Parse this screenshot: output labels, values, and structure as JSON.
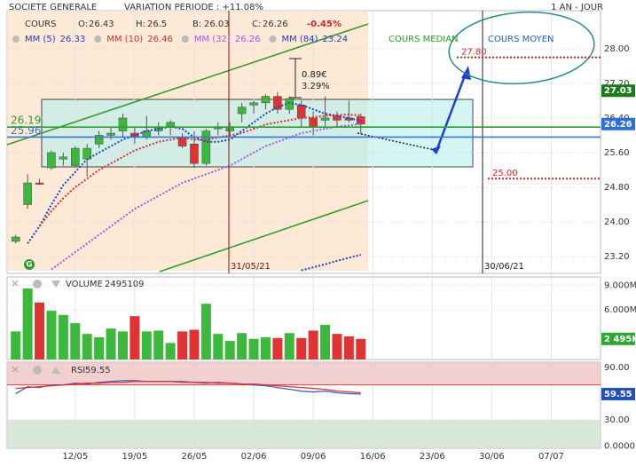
{
  "header": {
    "title": "SOCIETE GENERALE",
    "variation": "VARIATION PERIODE : +11.08%",
    "period": "1 AN - JOUR",
    "cours": "COURS",
    "o": "O:",
    "h": "H:",
    "b": "B:",
    "c": "C:",
    "change": "-0.45%"
  },
  "chart_data": [
    {
      "type": "candlestick",
      "categories": [
        null,
        null,
        null,
        null,
        null,
        "12/05",
        null,
        null,
        null,
        null,
        "19/05",
        null,
        null,
        null,
        null,
        "26/05",
        null,
        null,
        null,
        null,
        "02/06",
        null,
        null,
        null,
        null,
        "09/06",
        null,
        null,
        null,
        null,
        "16/06",
        null,
        null,
        null,
        null,
        "23/06",
        null,
        null,
        null,
        null,
        "30/06",
        null,
        null,
        null,
        null,
        "07/07",
        null,
        null
      ],
      "open": [
        23.55,
        24.4,
        24.9,
        25.25,
        25.45,
        25.3,
        25.45,
        25.8,
        26.0,
        26.1,
        26.05,
        25.95,
        26.1,
        26.2,
        25.95,
        25.8,
        25.35,
        26.15,
        26.1,
        26.5,
        26.7,
        26.75,
        26.9,
        26.6,
        26.7,
        26.4,
        26.35,
        26.45,
        26.4,
        26.43,
        null,
        null,
        null,
        null,
        null,
        null,
        null,
        null,
        null,
        null,
        null,
        null,
        null,
        null,
        null,
        null,
        null,
        null
      ],
      "high": [
        23.7,
        25.1,
        25.0,
        25.65,
        25.6,
        25.75,
        25.8,
        26.1,
        26.2,
        26.5,
        26.2,
        26.45,
        26.3,
        26.35,
        26.05,
        26.1,
        26.15,
        26.3,
        26.3,
        26.75,
        26.8,
        26.95,
        27.0,
        26.9,
        26.8,
        26.55,
        26.9,
        26.55,
        26.8,
        26.5,
        null,
        null,
        null,
        null,
        null,
        null,
        null,
        null,
        null,
        null,
        null,
        null,
        null,
        null,
        null,
        null,
        null,
        null
      ],
      "low": [
        23.5,
        24.3,
        24.85,
        25.2,
        25.3,
        25.25,
        25.05,
        25.7,
        25.9,
        25.95,
        25.8,
        25.9,
        26.0,
        26.0,
        25.7,
        25.25,
        25.3,
        26.0,
        26.0,
        26.3,
        26.5,
        26.6,
        26.5,
        26.5,
        26.2,
        26.0,
        26.2,
        26.2,
        26.3,
        26.03,
        null,
        null,
        null,
        null,
        null,
        null,
        null,
        null,
        null,
        null,
        null,
        null,
        null,
        null,
        null,
        null,
        null,
        null
      ],
      "close": [
        23.65,
        24.9,
        24.88,
        25.6,
        25.5,
        25.7,
        25.7,
        26.0,
        26.05,
        26.4,
        25.95,
        26.1,
        26.2,
        26.3,
        25.75,
        25.35,
        26.1,
        26.2,
        26.2,
        26.65,
        26.75,
        26.9,
        26.6,
        26.85,
        26.4,
        26.2,
        26.4,
        26.35,
        26.35,
        26.26,
        null,
        null,
        null,
        null,
        null,
        null,
        null,
        null,
        null,
        null,
        null,
        null,
        null,
        null,
        null,
        null,
        null,
        null
      ],
      "up_color": "#3cb83c",
      "down_color": "#e03434",
      "ylim": [
        22.81,
        28.88
      ],
      "yticks": [
        {
          "value": 23.2,
          "label": "23.20"
        },
        {
          "value": 24,
          "label": "24.00"
        },
        {
          "value": 24.8,
          "label": "24.80"
        },
        {
          "value": 25.6,
          "label": "25.60"
        },
        {
          "value": 26.4,
          "label": "26.40"
        },
        {
          "value": 27.2,
          "label": "27.20"
        },
        {
          "value": 28,
          "label": "28.00"
        }
      ],
      "grid": true,
      "series": [
        {
          "name": "MM (5)",
          "color": "#1f3fc8",
          "values": [
            null,
            23.5,
            23.9,
            24.4,
            24.85,
            25.15,
            25.45,
            25.6,
            25.75,
            25.9,
            26.0,
            26.1,
            26.15,
            26.2,
            26.15,
            25.95,
            25.85,
            25.85,
            25.9,
            26.1,
            26.3,
            26.5,
            26.65,
            26.75,
            26.7,
            26.6,
            26.5,
            26.45,
            26.4,
            26.33,
            null,
            null,
            null,
            null,
            null,
            null,
            null,
            null,
            null,
            null,
            null,
            null,
            null,
            null,
            null,
            null,
            null,
            null
          ]
        },
        {
          "name": "MM (10)",
          "color": "#d83030",
          "values": [
            null,
            null,
            23.9,
            24.25,
            24.55,
            24.8,
            25.0,
            25.2,
            25.35,
            25.5,
            25.65,
            25.75,
            25.85,
            25.9,
            25.95,
            25.9,
            25.9,
            25.95,
            26.0,
            26.05,
            26.15,
            26.25,
            26.3,
            26.35,
            26.4,
            26.42,
            26.45,
            26.47,
            26.48,
            26.46,
            null,
            null,
            null,
            null,
            null,
            null,
            null,
            null,
            null,
            null,
            null,
            null,
            null,
            null,
            null,
            null,
            null,
            null
          ]
        },
        {
          "name": "MM (32)",
          "color": "#a855e8",
          "values": [
            null,
            null,
            null,
            22.9,
            23.1,
            23.3,
            23.5,
            23.7,
            23.9,
            24.1,
            24.3,
            24.45,
            24.6,
            24.75,
            24.9,
            25.0,
            25.1,
            25.2,
            25.3,
            25.45,
            25.6,
            25.75,
            25.85,
            25.95,
            26.05,
            26.1,
            26.15,
            26.2,
            26.23,
            26.26,
            null,
            null,
            null,
            null,
            null,
            null,
            null,
            null,
            null,
            null,
            null,
            null,
            null,
            null,
            null,
            null,
            null,
            null
          ]
        },
        {
          "name": "MM (84)",
          "color": "#1f3fc8",
          "values": [
            null,
            null,
            null,
            null,
            null,
            null,
            null,
            null,
            null,
            null,
            null,
            null,
            null,
            null,
            null,
            null,
            null,
            null,
            null,
            null,
            null,
            null,
            null,
            null,
            22.88,
            22.95,
            23.02,
            23.1,
            23.17,
            23.24,
            null,
            null,
            null,
            null,
            null,
            null,
            null,
            null,
            null,
            null,
            null,
            null,
            null,
            null,
            null,
            null,
            null,
            null
          ]
        }
      ],
      "levels": [
        {
          "value": 26.19,
          "color": "#2e9e2e"
        },
        {
          "value": 25.96,
          "color": "#3a78d8"
        }
      ],
      "targets": [
        {
          "value": 27.8,
          "label": "27.80",
          "color": "#e02020"
        },
        {
          "value": 25,
          "label": "25.00",
          "color": "#e02020"
        }
      ],
      "badges": [
        {
          "value": 27.03,
          "color": "#1c7a1c"
        }
      ],
      "texts": {
        "median": "COURS MEDIAN",
        "mean": "COURS MOYEN",
        "measure_value": "0.89€",
        "measure_pct": "3.29%",
        "date_a": "31/05/21",
        "date_b": "30/06/21",
        "marker": "G"
      }
    },
    {
      "type": "bar",
      "title": "VOLUME",
      "values": [
        3400000,
        8600000,
        6900000,
        5900000,
        5400000,
        4400000,
        3100000,
        2700000,
        3750000,
        3400000,
        5250000,
        3400000,
        3500000,
        2000000,
        3400000,
        3600000,
        6750000,
        3100000,
        2250000,
        3200000,
        2500000,
        2700000,
        2600000,
        3200000,
        2600000,
        3500000,
        4200000,
        3100000,
        2800000,
        2495109,
        null,
        null,
        null,
        null,
        null,
        null,
        null,
        null,
        null,
        null,
        null,
        null,
        null,
        null,
        null,
        null,
        null,
        null
      ],
      "ylim": [
        0,
        10000000
      ],
      "yticks": [
        {
          "value": 6000000,
          "label": "6.000M"
        },
        {
          "value": 9000000,
          "label": "9.000M"
        }
      ],
      "last_label": "2 495K",
      "badge_color": "#2ea82e"
    },
    {
      "type": "line",
      "ylim": [
        -2.5,
        96.1
      ],
      "yticks": [
        {
          "value": 0,
          "label": "0.0000"
        },
        {
          "value": 30,
          "label": "30.00"
        },
        {
          "value": 90,
          "label": "90.00"
        }
      ],
      "series": [
        {
          "name": "RSI",
          "color": "#3a64c8",
          "values": [
            60,
            68,
            67,
            70,
            70,
            72,
            71,
            73,
            74,
            75,
            75,
            74,
            74,
            74,
            74,
            73,
            72,
            73,
            72,
            71,
            70,
            69,
            67,
            65,
            63,
            62,
            63,
            61,
            60,
            59.55,
            null,
            null,
            null,
            null,
            null,
            null,
            null,
            null,
            null,
            null,
            null,
            null,
            null,
            null,
            null,
            null,
            null,
            null
          ]
        },
        {
          "color": "#e03030",
          "values": [
            66,
            67,
            68,
            69,
            70,
            71,
            72,
            72,
            73,
            73,
            74,
            74,
            74,
            74,
            73,
            73,
            73,
            72,
            72,
            71,
            71,
            70,
            69,
            68,
            67,
            66,
            65,
            63,
            62,
            61,
            null,
            null,
            null,
            null,
            null,
            null,
            null,
            null,
            null,
            null,
            null,
            null,
            null,
            null,
            null,
            null,
            null,
            null
          ]
        }
      ],
      "badge_color": "#1f4fc0"
    }
  ]
}
